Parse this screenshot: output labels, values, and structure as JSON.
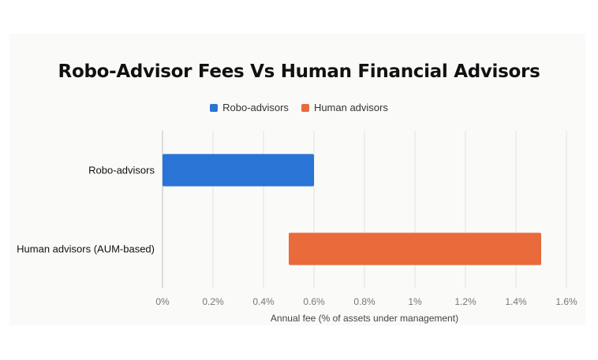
{
  "chart_data": {
    "type": "bar",
    "orientation": "horizontal",
    "title": "Robo-Advisor Fees Vs Human Financial Advisors",
    "xlabel": "Annual fee (% of assets under management)",
    "ylabel": "",
    "xlim": [
      0,
      1.6
    ],
    "x_ticks": [
      "0%",
      "0.2%",
      "0.4%",
      "0.6%",
      "0.8%",
      "1%",
      "1.2%",
      "1.4%",
      "1.6%"
    ],
    "categories": [
      "Robo-advisors",
      "Human advisors (AUM-based)"
    ],
    "bars": [
      {
        "category": "Robo-advisors",
        "series": "Robo-advisors",
        "start": 0,
        "end": 0.6,
        "color": "#2a74d6"
      },
      {
        "category": "Human advisors (AUM-based)",
        "series": "Human advisors",
        "start": 0.5,
        "end": 1.5,
        "color": "#e96a3a"
      }
    ],
    "legend": [
      {
        "name": "Robo-advisors",
        "color": "#2a74d6"
      },
      {
        "name": "Human advisors",
        "color": "#e96a3a"
      }
    ],
    "legend_position": "top-center",
    "grid": true
  }
}
